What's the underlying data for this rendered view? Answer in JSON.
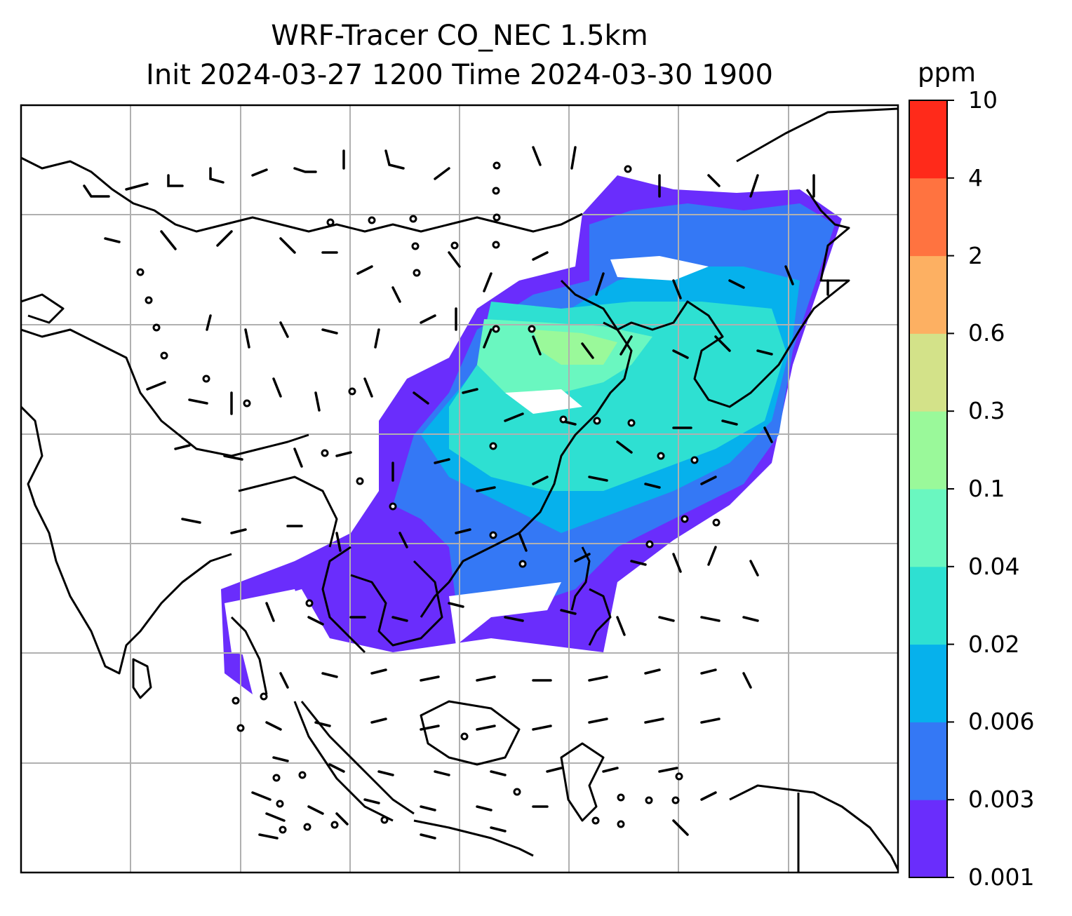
{
  "title_line1": "WRF-Tracer CO_NEC 1.5km",
  "title_line2": "Init 2024-03-27 1200 Time 2024-03-30 1900",
  "colorbar": {
    "unit": "ppm",
    "levels": [
      "10",
      "4",
      "2",
      "0.6",
      "0.3",
      "0.1",
      "0.04",
      "0.02",
      "0.006",
      "0.003",
      "0.001"
    ],
    "colors": [
      "#6a2dfc",
      "#3478f5",
      "#06b1ec",
      "#2ee0d2",
      "#6af7c0",
      "#9af99a",
      "#d3e289",
      "#fdb062",
      "#ff7340",
      "#ff2a1a"
    ]
  },
  "map": {
    "gridlines": "on",
    "gridline_color": "#b0b0b0",
    "coastline_color": "#000000",
    "features": [
      "coastlines",
      "country-borders",
      "wind-barbs",
      "calm-circles",
      "tracer-concentration-fill"
    ]
  }
}
